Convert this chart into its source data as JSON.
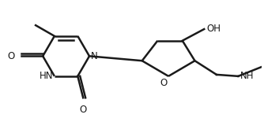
{
  "bg_color": "#ffffff",
  "line_color": "#1a1a1a",
  "line_width": 1.8,
  "font_size": 8.5,
  "figsize": [
    3.34,
    1.5
  ],
  "dpi": 100,
  "xlim": [
    0,
    334
  ],
  "ylim": [
    0,
    150
  ]
}
